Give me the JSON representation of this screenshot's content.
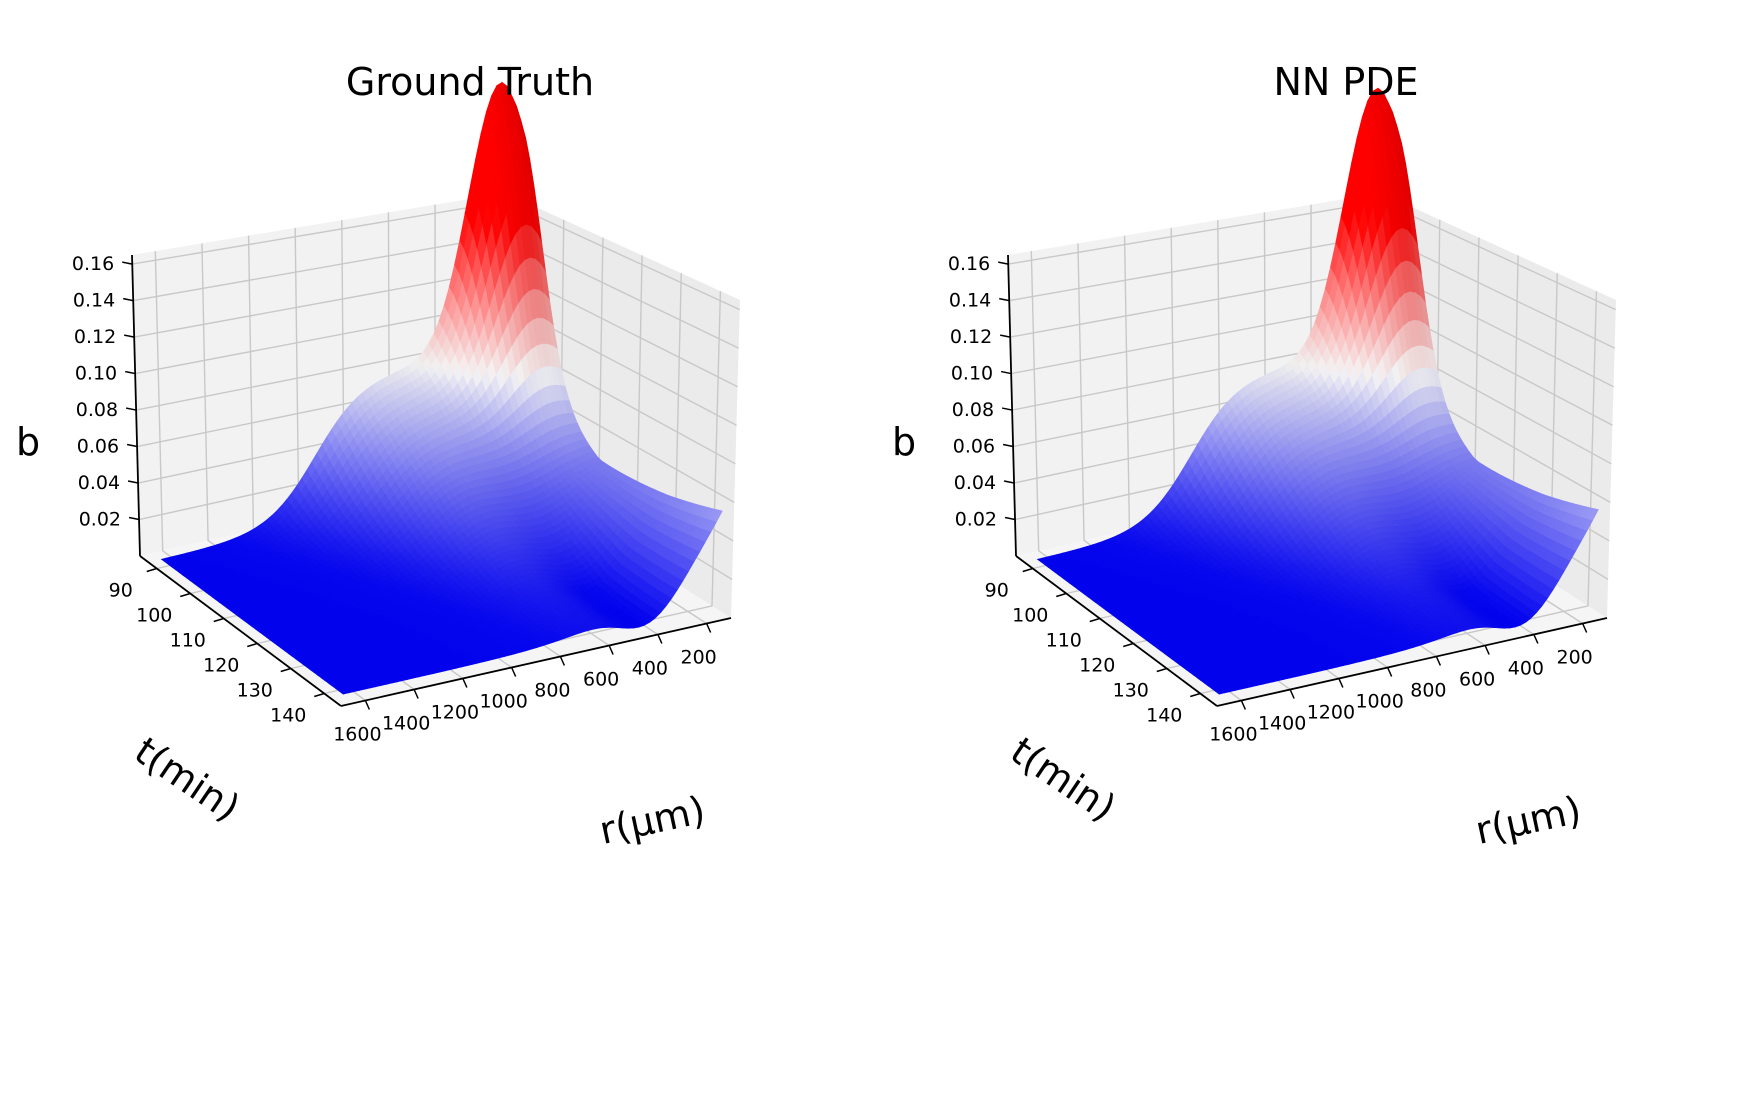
{
  "chart_data": [
    {
      "type": "surface3d",
      "title": "Ground Truth",
      "xlabel": "r(μm)",
      "ylabel": "t(min)",
      "zlabel": "b",
      "x_ticks": [
        "200",
        "400",
        "600",
        "800",
        "1000",
        "1200",
        "1400",
        "1600"
      ],
      "y_ticks": [
        "90",
        "100",
        "110",
        "120",
        "130",
        "140"
      ],
      "z_ticks": [
        "0.02",
        "0.04",
        "0.06",
        "0.08",
        "0.10",
        "0.12",
        "0.14",
        "0.16"
      ],
      "xlim": [
        1700,
        100
      ],
      "ylim": [
        85,
        145
      ],
      "zlim": [
        0,
        0.165
      ],
      "colormap": [
        "#0000ff",
        "#ffffff",
        "#ff0000"
      ],
      "grid": true,
      "peak": {
        "r": 200,
        "t": 90,
        "b": 0.16
      },
      "surface_samples": {
        "r": [
          200,
          400,
          600,
          800,
          1000,
          1200,
          1400,
          1600
        ],
        "t": [
          90,
          100,
          110,
          120,
          130,
          140
        ],
        "b": [
          [
            0.16,
            0.085,
            0.058,
            0.045,
            0.025,
            0.008,
            0.002,
            0.001
          ],
          [
            0.1,
            0.075,
            0.055,
            0.04,
            0.02,
            0.006,
            0.002,
            0.001
          ],
          [
            0.075,
            0.06,
            0.045,
            0.03,
            0.013,
            0.004,
            0.001,
            0.001
          ],
          [
            0.062,
            0.05,
            0.034,
            0.02,
            0.008,
            0.003,
            0.001,
            0.001
          ],
          [
            0.06,
            0.044,
            0.026,
            0.013,
            0.005,
            0.002,
            0.001,
            0.001
          ],
          [
            0.062,
            0.04,
            0.02,
            0.009,
            0.004,
            0.001,
            0.001,
            0.001
          ]
        ]
      }
    },
    {
      "type": "surface3d",
      "title": "NN PDE",
      "xlabel": "r(μm)",
      "ylabel": "t(min)",
      "zlabel": "b",
      "x_ticks": [
        "200",
        "400",
        "600",
        "800",
        "1000",
        "1200",
        "1400",
        "1600"
      ],
      "y_ticks": [
        "90",
        "100",
        "110",
        "120",
        "130",
        "140"
      ],
      "z_ticks": [
        "0.02",
        "0.04",
        "0.06",
        "0.08",
        "0.10",
        "0.12",
        "0.14",
        "0.16"
      ],
      "xlim": [
        1700,
        100
      ],
      "ylim": [
        85,
        145
      ],
      "zlim": [
        0,
        0.165
      ],
      "colormap": [
        "#0000ff",
        "#ffffff",
        "#ff0000"
      ],
      "grid": true,
      "peak": {
        "r": 200,
        "t": 90,
        "b": 0.16
      },
      "surface_samples": {
        "r": [
          200,
          400,
          600,
          800,
          1000,
          1200,
          1400,
          1600
        ],
        "t": [
          90,
          100,
          110,
          120,
          130,
          140
        ],
        "b": [
          [
            0.16,
            0.086,
            0.06,
            0.046,
            0.026,
            0.009,
            0.002,
            0.001
          ],
          [
            0.102,
            0.077,
            0.056,
            0.041,
            0.021,
            0.006,
            0.002,
            0.001
          ],
          [
            0.076,
            0.061,
            0.046,
            0.031,
            0.014,
            0.004,
            0.001,
            0.001
          ],
          [
            0.063,
            0.051,
            0.035,
            0.021,
            0.008,
            0.003,
            0.001,
            0.001
          ],
          [
            0.058,
            0.043,
            0.025,
            0.012,
            0.005,
            0.002,
            0.001,
            0.001
          ],
          [
            0.06,
            0.04,
            0.019,
            0.008,
            0.004,
            0.001,
            0.001,
            0.001
          ]
        ]
      }
    }
  ]
}
